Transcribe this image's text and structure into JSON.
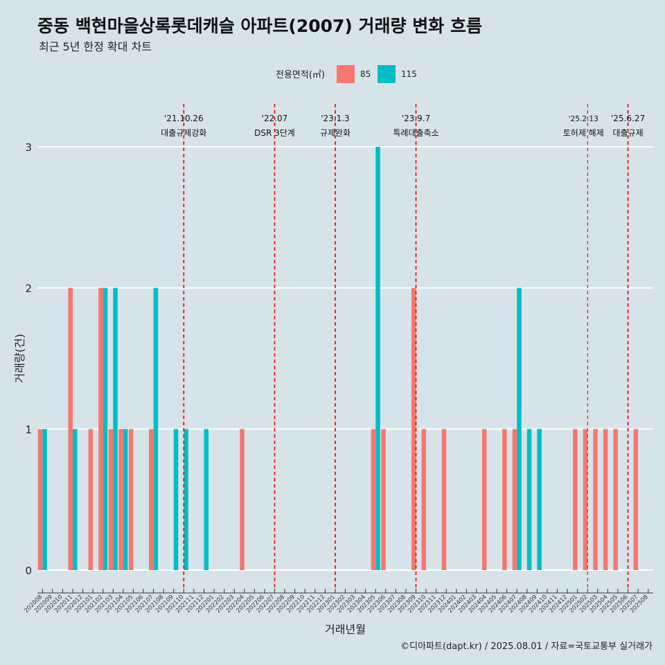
{
  "title": "중동 백현마을상록롯데캐슬 아파트(2007) 거래량 변화 흐름",
  "subtitle": "최근 5년 한정 확대 차트",
  "caption": "©디아파트(dapt.kr) / 2025.08.01 / 자료=국토교통부 실거래가",
  "colors": {
    "s85": "#F8766D",
    "s115": "#00BFC4",
    "vline": "#EE1111",
    "background": "#d6e4ea",
    "grid": "#ffffff"
  },
  "chart_data": {
    "type": "bar",
    "xlabel": "거래년월",
    "ylabel": "거래량(건)",
    "ylim": [
      0,
      3
    ],
    "yticks": [
      0,
      1,
      2,
      3
    ],
    "grid": "horizontal-major",
    "legend": {
      "title": "전용면적(㎡)",
      "position": "top"
    },
    "categories": [
      "202008",
      "202009",
      "202010",
      "202011",
      "202012",
      "202101",
      "202102",
      "202103",
      "202104",
      "202105",
      "202106",
      "202107",
      "202108",
      "202109",
      "202110",
      "202111",
      "202112",
      "202201",
      "202202",
      "202203",
      "202204",
      "202205",
      "202206",
      "202207",
      "202208",
      "202209",
      "202210",
      "202211",
      "202212",
      "202301",
      "202302",
      "202303",
      "202304",
      "202305",
      "202306",
      "202307",
      "202308",
      "202309",
      "202310",
      "202311",
      "202312",
      "202401",
      "202402",
      "202403",
      "202404",
      "202405",
      "202406",
      "202407",
      "202408",
      "202409",
      "202410",
      "202411",
      "202412",
      "202501",
      "202502",
      "202503",
      "202504",
      "202505",
      "202506",
      "202507",
      "202508"
    ],
    "series": [
      {
        "name": "85",
        "values": [
          1,
          0,
          0,
          2,
          0,
          1,
          2,
          1,
          1,
          1,
          0,
          1,
          0,
          0,
          0,
          0,
          0,
          0,
          0,
          0,
          1,
          0,
          0,
          0,
          0,
          0,
          0,
          0,
          0,
          0,
          0,
          0,
          0,
          1,
          1,
          0,
          0,
          2,
          1,
          0,
          1,
          0,
          0,
          0,
          1,
          0,
          1,
          1,
          0,
          0,
          0,
          0,
          0,
          1,
          1,
          1,
          1,
          1,
          0,
          1,
          0
        ]
      },
      {
        "name": "115",
        "values": [
          1,
          0,
          0,
          1,
          0,
          0,
          2,
          2,
          1,
          0,
          0,
          2,
          0,
          1,
          1,
          0,
          1,
          0,
          0,
          0,
          0,
          0,
          0,
          0,
          0,
          0,
          0,
          0,
          0,
          0,
          0,
          0,
          0,
          3,
          0,
          0,
          0,
          0,
          0,
          0,
          0,
          0,
          0,
          0,
          0,
          0,
          0,
          2,
          1,
          1,
          0,
          0,
          0,
          0,
          0,
          0,
          0,
          0,
          0,
          0,
          0
        ]
      }
    ],
    "annotations": [
      {
        "x": "202110",
        "date": "'21.10.26",
        "label": "대출규제강화"
      },
      {
        "x": "202207",
        "date": "'22.07",
        "label": "DSR 3단계"
      },
      {
        "x": "202301",
        "date": "'23.1.3",
        "label": "규제완화"
      },
      {
        "x": "202309",
        "date": "'23.9.7",
        "label": "특례대출축소"
      },
      {
        "x": "202502",
        "date": "'25.2.13",
        "label": "토허제 해제"
      },
      {
        "x": "202506",
        "date": "'25.6.27",
        "label": "대출규제"
      }
    ]
  }
}
